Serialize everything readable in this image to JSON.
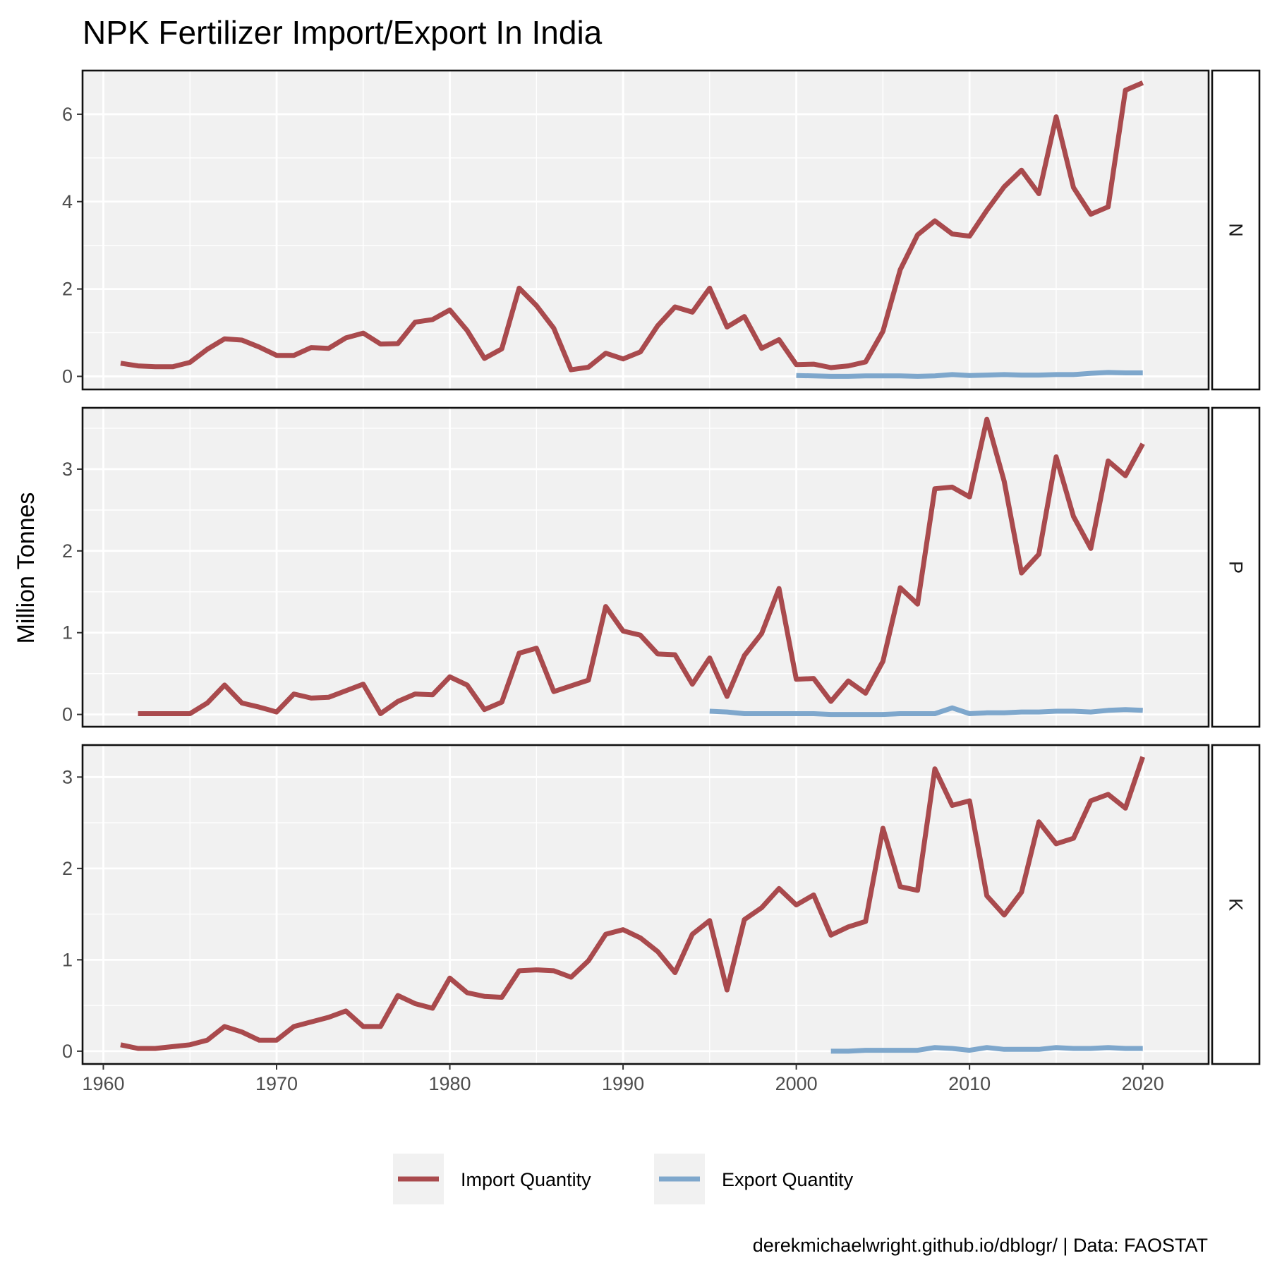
{
  "chart_data": {
    "type": "line",
    "title": "NPK Fertilizer Import/Export In India",
    "ylabel": "Million Tonnes",
    "xlabel": "",
    "caption": "derekmichaelwright.github.io/dblogr/ | Data: FAOSTAT",
    "legend": {
      "position": "bottom",
      "entries": [
        "Import Quantity",
        "Export Quantity"
      ]
    },
    "colors": {
      "Import Quantity": "#a94a4d",
      "Export Quantity": "#7ea7cc"
    },
    "xlim": [
      1958.8,
      2023.8
    ],
    "x_ticks": [
      1960,
      1970,
      1980,
      1990,
      2000,
      2010,
      2020
    ],
    "grid": true,
    "facets": [
      {
        "label": "N",
        "ylim": [
          -0.3,
          7.0
        ],
        "y_ticks": [
          0,
          2,
          4,
          6
        ],
        "series": [
          {
            "name": "Import Quantity",
            "x": [
              1961,
              1962,
              1963,
              1964,
              1965,
              1966,
              1967,
              1968,
              1969,
              1970,
              1971,
              1972,
              1973,
              1974,
              1975,
              1976,
              1977,
              1978,
              1979,
              1980,
              1981,
              1982,
              1983,
              1984,
              1985,
              1986,
              1987,
              1988,
              1989,
              1990,
              1991,
              1992,
              1993,
              1994,
              1995,
              1996,
              1997,
              1998,
              1999,
              2000,
              2001,
              2002,
              2003,
              2004,
              2005,
              2006,
              2007,
              2008,
              2009,
              2010,
              2011,
              2012,
              2013,
              2014,
              2015,
              2016,
              2017,
              2018,
              2019,
              2020
            ],
            "values": [
              0.3,
              0.24,
              0.22,
              0.22,
              0.32,
              0.62,
              0.86,
              0.83,
              0.67,
              0.48,
              0.48,
              0.66,
              0.64,
              0.88,
              0.99,
              0.74,
              0.75,
              1.24,
              1.3,
              1.52,
              1.05,
              0.41,
              0.63,
              2.02,
              1.62,
              1.1,
              0.15,
              0.21,
              0.53,
              0.4,
              0.56,
              1.16,
              1.59,
              1.47,
              2.02,
              1.13,
              1.37,
              0.64,
              0.84,
              0.27,
              0.28,
              0.2,
              0.24,
              0.33,
              1.03,
              2.44,
              3.24,
              3.56,
              3.26,
              3.21,
              3.8,
              4.34,
              4.72,
              4.18,
              5.94,
              4.32,
              3.71,
              3.88,
              6.55,
              6.72
            ]
          },
          {
            "name": "Export Quantity",
            "x": [
              2000,
              2001,
              2002,
              2003,
              2004,
              2005,
              2006,
              2007,
              2008,
              2009,
              2010,
              2011,
              2012,
              2013,
              2014,
              2015,
              2016,
              2017,
              2018,
              2019,
              2020
            ],
            "values": [
              0.02,
              0.01,
              0.0,
              0.0,
              0.01,
              0.01,
              0.01,
              0.0,
              0.01,
              0.04,
              0.02,
              0.03,
              0.04,
              0.03,
              0.03,
              0.04,
              0.04,
              0.07,
              0.09,
              0.08,
              0.08
            ]
          }
        ]
      },
      {
        "label": "P",
        "ylim": [
          -0.15,
          3.75
        ],
        "y_ticks": [
          0,
          1,
          2,
          3
        ],
        "series": [
          {
            "name": "Import Quantity",
            "x": [
              1962,
              1963,
              1964,
              1965,
              1966,
              1967,
              1968,
              1969,
              1970,
              1971,
              1972,
              1973,
              1974,
              1975,
              1976,
              1977,
              1978,
              1979,
              1980,
              1981,
              1982,
              1983,
              1984,
              1985,
              1986,
              1987,
              1988,
              1989,
              1990,
              1991,
              1992,
              1993,
              1994,
              1995,
              1996,
              1997,
              1998,
              1999,
              2000,
              2001,
              2002,
              2003,
              2004,
              2005,
              2006,
              2007,
              2008,
              2009,
              2010,
              2011,
              2012,
              2013,
              2014,
              2015,
              2016,
              2017,
              2018,
              2019,
              2020
            ],
            "values": [
              0.01,
              0.01,
              0.01,
              0.01,
              0.14,
              0.36,
              0.14,
              0.09,
              0.03,
              0.25,
              0.2,
              0.21,
              0.29,
              0.37,
              0.01,
              0.16,
              0.25,
              0.24,
              0.46,
              0.36,
              0.06,
              0.15,
              0.75,
              0.81,
              0.28,
              0.35,
              0.42,
              1.32,
              1.02,
              0.97,
              0.74,
              0.73,
              0.37,
              0.69,
              0.22,
              0.72,
              0.99,
              1.54,
              0.43,
              0.44,
              0.16,
              0.41,
              0.26,
              0.65,
              1.55,
              1.35,
              2.76,
              2.78,
              2.66,
              3.61,
              2.85,
              1.73,
              1.96,
              3.15,
              2.42,
              2.03,
              3.1,
              2.92,
              3.31
            ]
          },
          {
            "name": "Export Quantity",
            "x": [
              1995,
              1996,
              1997,
              1998,
              1999,
              2000,
              2001,
              2002,
              2003,
              2004,
              2005,
              2006,
              2007,
              2008,
              2009,
              2010,
              2011,
              2012,
              2013,
              2014,
              2015,
              2016,
              2017,
              2018,
              2019,
              2020
            ],
            "values": [
              0.04,
              0.03,
              0.01,
              0.01,
              0.01,
              0.01,
              0.01,
              0.0,
              0.0,
              0.0,
              0.0,
              0.01,
              0.01,
              0.01,
              0.08,
              0.01,
              0.02,
              0.02,
              0.03,
              0.03,
              0.04,
              0.04,
              0.03,
              0.05,
              0.06,
              0.05
            ]
          }
        ]
      },
      {
        "label": "K",
        "ylim": [
          -0.14,
          3.35
        ],
        "y_ticks": [
          0,
          1,
          2,
          3
        ],
        "series": [
          {
            "name": "Import Quantity",
            "x": [
              1961,
              1962,
              1963,
              1964,
              1965,
              1966,
              1967,
              1968,
              1969,
              1970,
              1971,
              1972,
              1973,
              1974,
              1975,
              1976,
              1977,
              1978,
              1979,
              1980,
              1981,
              1982,
              1983,
              1984,
              1985,
              1986,
              1987,
              1988,
              1989,
              1990,
              1991,
              1992,
              1993,
              1994,
              1995,
              1996,
              1997,
              1998,
              1999,
              2000,
              2001,
              2002,
              2003,
              2004,
              2005,
              2006,
              2007,
              2008,
              2009,
              2010,
              2011,
              2012,
              2013,
              2014,
              2015,
              2016,
              2017,
              2018,
              2019,
              2020
            ],
            "values": [
              0.07,
              0.03,
              0.03,
              0.05,
              0.07,
              0.12,
              0.27,
              0.21,
              0.12,
              0.12,
              0.27,
              0.32,
              0.37,
              0.44,
              0.27,
              0.27,
              0.61,
              0.52,
              0.47,
              0.8,
              0.64,
              0.6,
              0.59,
              0.88,
              0.89,
              0.88,
              0.81,
              0.99,
              1.28,
              1.33,
              1.24,
              1.09,
              0.86,
              1.28,
              1.43,
              0.67,
              1.44,
              1.57,
              1.78,
              1.6,
              1.71,
              1.27,
              1.36,
              1.42,
              2.44,
              1.8,
              1.76,
              3.09,
              2.69,
              2.74,
              1.7,
              1.49,
              1.74,
              2.51,
              2.27,
              2.33,
              2.74,
              2.81,
              2.66,
              3.22
            ]
          },
          {
            "name": "Export Quantity",
            "x": [
              2002,
              2003,
              2004,
              2005,
              2006,
              2007,
              2008,
              2009,
              2010,
              2011,
              2012,
              2013,
              2014,
              2015,
              2016,
              2017,
              2018,
              2019,
              2020
            ],
            "values": [
              0.0,
              0.0,
              0.01,
              0.01,
              0.01,
              0.01,
              0.04,
              0.03,
              0.01,
              0.04,
              0.02,
              0.02,
              0.02,
              0.04,
              0.03,
              0.03,
              0.04,
              0.03,
              0.03
            ]
          }
        ]
      }
    ]
  }
}
